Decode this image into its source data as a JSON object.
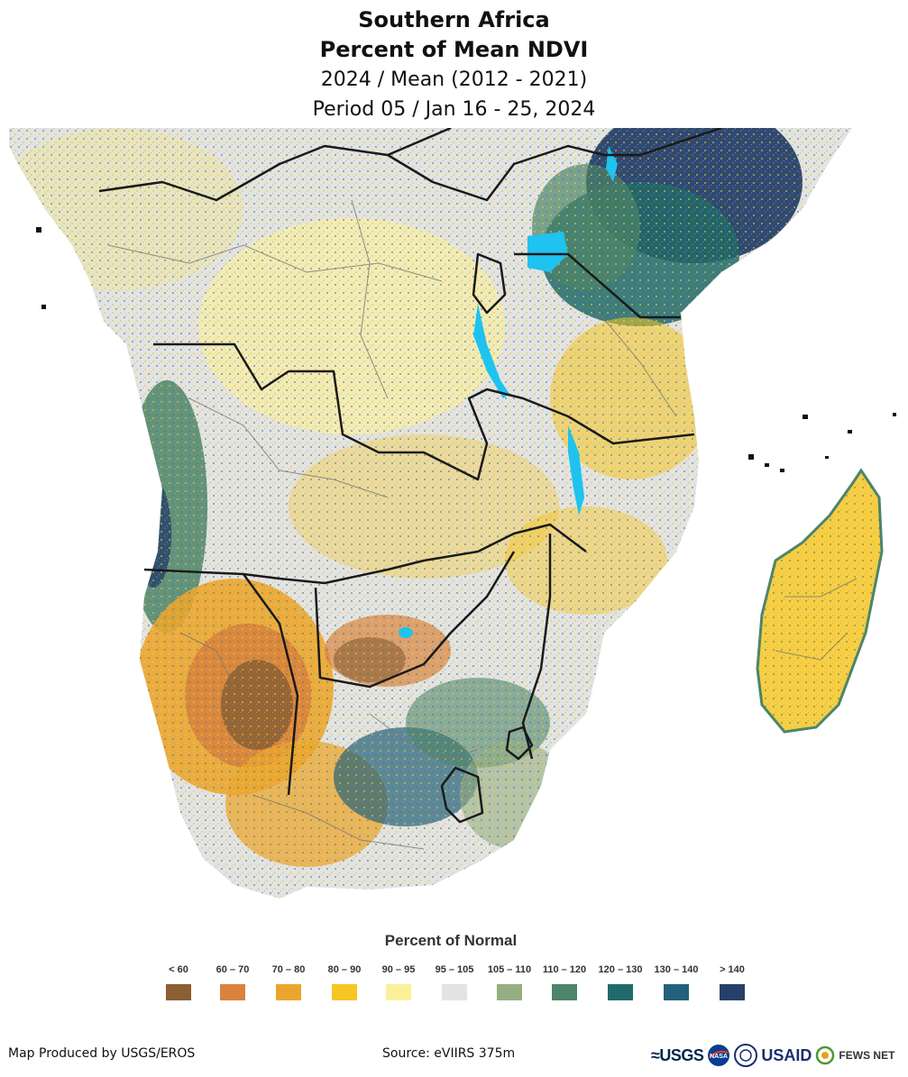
{
  "title": {
    "line1": "Southern Africa",
    "line2": "Percent of Mean NDVI",
    "line3": "2024 / Mean (2012 - 2021)",
    "line4": "Period 05 / Jan 16 - 25, 2024"
  },
  "legend": {
    "title": "Percent of Normal",
    "items": [
      {
        "label": "< 60",
        "color": "#8B5E34"
      },
      {
        "label": "60 – 70",
        "color": "#D9833E"
      },
      {
        "label": "70 – 80",
        "color": "#EBA52F"
      },
      {
        "label": "80 – 90",
        "color": "#F6C623"
      },
      {
        "label": "90 – 95",
        "color": "#FBF09A"
      },
      {
        "label": "95 – 105",
        "color": "#E3E3E3"
      },
      {
        "label": "105 – 110",
        "color": "#96AF82"
      },
      {
        "label": "110 – 120",
        "color": "#4C856A"
      },
      {
        "label": "120 – 130",
        "color": "#206A6B"
      },
      {
        "label": "130 – 140",
        "color": "#22617B"
      },
      {
        "label": "> 140",
        "color": "#26406B"
      }
    ]
  },
  "footer": {
    "credit": "Map Produced by USGS/EROS",
    "source": "Source: eVIIRS 375m"
  },
  "logos": {
    "usgs": "≈USGS",
    "nasa": "NASA",
    "usaid": "USAID",
    "fews": "FEWS NET"
  }
}
